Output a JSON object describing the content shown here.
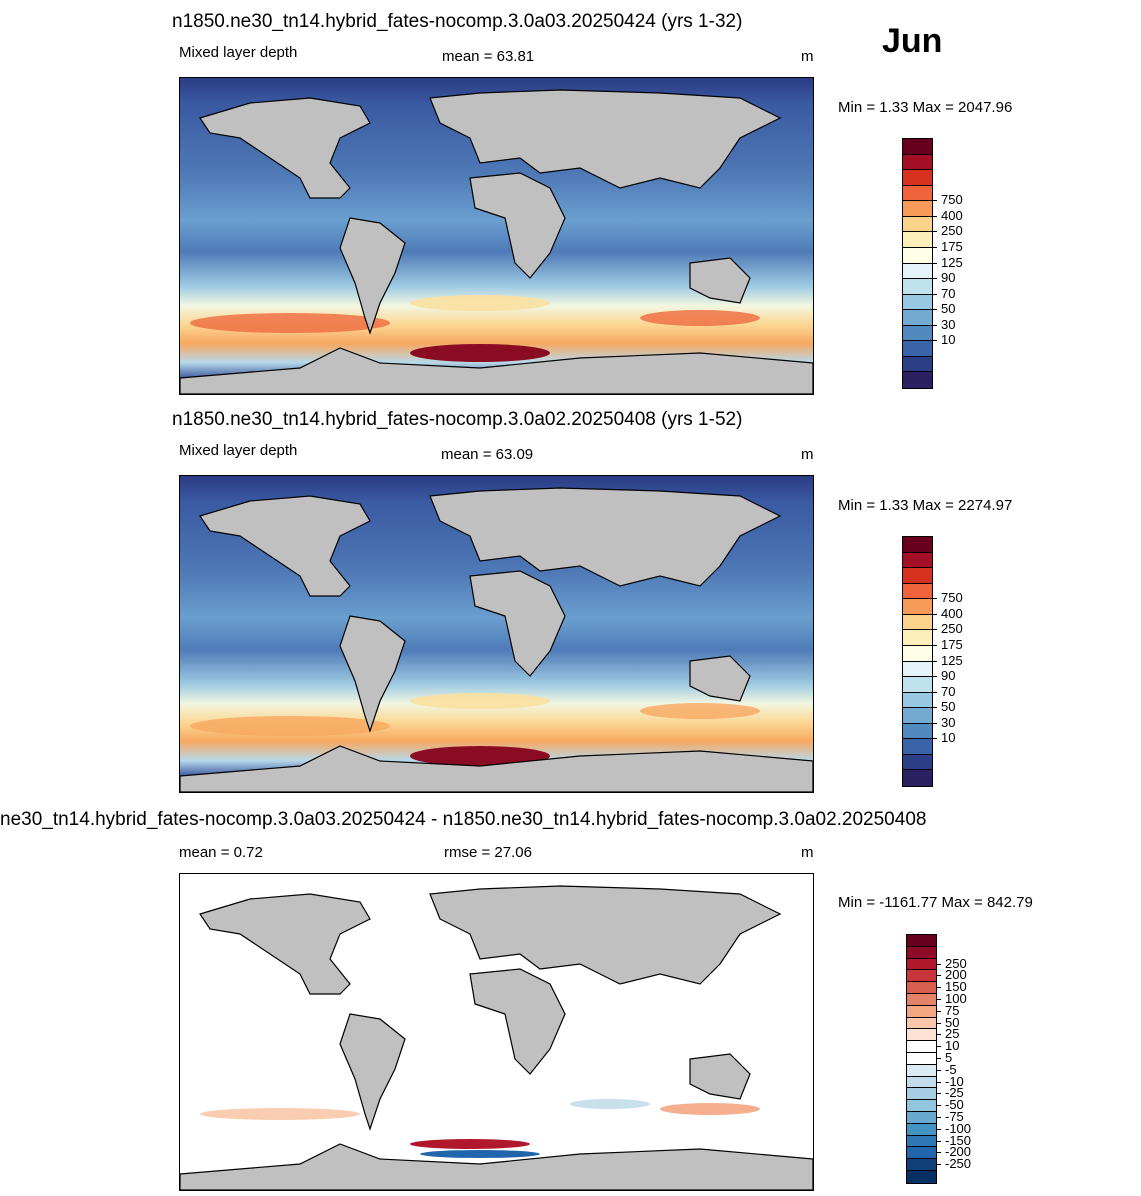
{
  "month": "Jun",
  "panels": [
    {
      "title": "n1850.ne30_tn14.hybrid_fates-nocomp.3.0a03.20250424 (yrs 1-32)",
      "left_label": "Mixed layer depth",
      "center_label": "mean =  63.81",
      "units": "m",
      "minmax": "Min =   1.33 Max = 2047.96"
    },
    {
      "title": "n1850.ne30_tn14.hybrid_fates-nocomp.3.0a02.20250408 (yrs 1-52)",
      "left_label": "Mixed layer depth",
      "center_label": "mean =  63.09",
      "units": "m",
      "minmax": "Min =   1.33 Max = 2274.97"
    },
    {
      "title": "ne30_tn14.hybrid_fates-nocomp.3.0a03.20250424 - n1850.ne30_tn14.hybrid_fates-nocomp.3.0a02.20250408",
      "left_label": "mean =   0.72",
      "center_label": "rmse =  27.06",
      "units": "m",
      "minmax": "Min = -1161.77 Max = 842.79"
    }
  ],
  "colorbar_abs": {
    "labels": [
      "750",
      "400",
      "250",
      "175",
      "125",
      "90",
      "70",
      "50",
      "30",
      "10"
    ],
    "colors": [
      "#67001f",
      "#a50f26",
      "#d6301e",
      "#f0623c",
      "#f79b5a",
      "#fdd28a",
      "#fcefbc",
      "#ffffe8",
      "#e3f3f8",
      "#c0e1ee",
      "#98c9e2",
      "#72aad1",
      "#528ac0",
      "#3a64a8",
      "#2c3e86",
      "#2b2160"
    ]
  },
  "colorbar_diff": {
    "labels": [
      "250",
      "200",
      "150",
      "100",
      "75",
      "50",
      "25",
      "10",
      "5",
      "-5",
      "-10",
      "-25",
      "-50",
      "-75",
      "-100",
      "-150",
      "-200",
      "-250"
    ],
    "colors": [
      "#67001f",
      "#8e0b25",
      "#b2182b",
      "#c8353a",
      "#d6604d",
      "#e58368",
      "#f4a582",
      "#f9c8aa",
      "#fde3d3",
      "#ffffff",
      "#ffffff",
      "#dcebf3",
      "#c2dcec",
      "#a6cde3",
      "#92c5de",
      "#6aaad0",
      "#4393c3",
      "#2e79b5",
      "#2166ac",
      "#113f78",
      "#053061"
    ]
  }
}
